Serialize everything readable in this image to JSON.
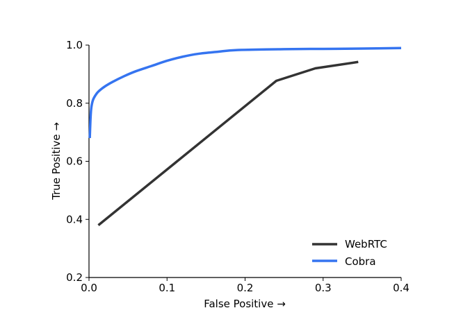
{
  "chart_data": {
    "type": "line",
    "title": "",
    "xlabel": "False Positive →",
    "ylabel": "True Positive →",
    "xlim": [
      0.0,
      0.4
    ],
    "ylim": [
      0.2,
      1.0
    ],
    "xticks": [
      0.0,
      0.1,
      0.2,
      0.3,
      0.4
    ],
    "xtick_labels": [
      "0.0",
      "0.1",
      "0.2",
      "0.3",
      "0.4"
    ],
    "yticks": [
      0.2,
      0.4,
      0.6,
      0.8,
      1.0
    ],
    "ytick_labels": [
      "0.2",
      "0.4",
      "0.6",
      "0.8",
      "1.0"
    ],
    "grid": false,
    "legend_position": "bottom-right",
    "series": [
      {
        "name": "WebRTC",
        "color": "#333333",
        "x": [
          0.012,
          0.24,
          0.29,
          0.345
        ],
        "y": [
          0.38,
          0.877,
          0.92,
          0.942
        ]
      },
      {
        "name": "Cobra",
        "color": "#3574f0",
        "x": [
          0.001,
          0.002,
          0.003,
          0.005,
          0.008,
          0.012,
          0.02,
          0.03,
          0.045,
          0.06,
          0.08,
          0.1,
          0.12,
          0.14,
          0.165,
          0.19,
          0.25,
          0.3,
          0.35,
          0.4
        ],
        "y": [
          0.68,
          0.75,
          0.785,
          0.81,
          0.826,
          0.84,
          0.857,
          0.873,
          0.893,
          0.91,
          0.928,
          0.946,
          0.96,
          0.97,
          0.977,
          0.983,
          0.986,
          0.987,
          0.988,
          0.99
        ]
      }
    ]
  }
}
